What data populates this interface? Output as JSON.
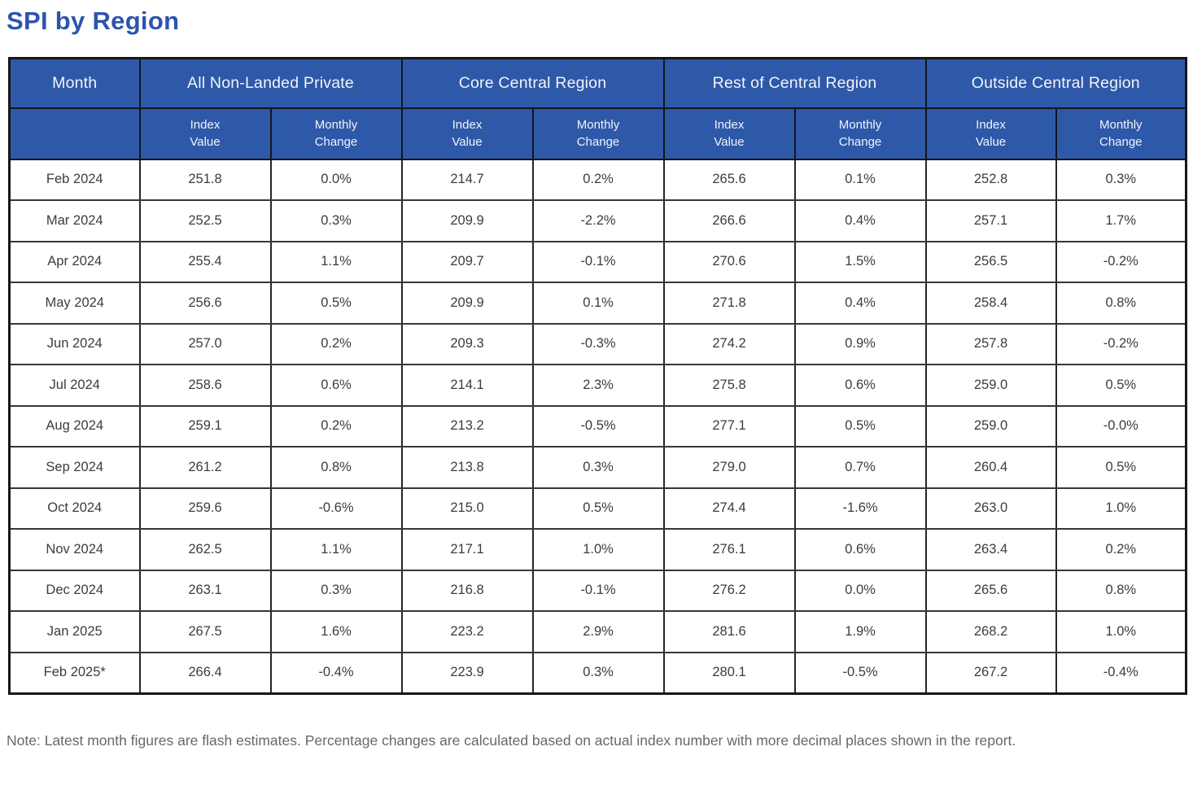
{
  "colors": {
    "title_text": "#2b55ae",
    "header_fill": "#2e59a8",
    "header_text": "#f1f4fa",
    "body_text": "#3c3c3c",
    "note_text": "#686868",
    "grid_line": "#2a2a2a"
  },
  "chart_data": {
    "type": "table",
    "title": "SPI by Region",
    "month_header": "Month",
    "regions": [
      "All Non-Landed Private",
      "Core Central Region",
      "Rest of Central Region",
      "Outside Central Region"
    ],
    "subheaders": [
      "Index\nValue",
      "Monthly\nChange",
      "Index\nValue",
      "Monthly\nChange",
      "Index\nValue",
      "Monthly\nChange",
      "Index\nValue",
      "Monthly\nChange"
    ],
    "rows": [
      {
        "month": "Feb 2024",
        "values": [
          "251.8",
          "0.0%",
          "214.7",
          "0.2%",
          "265.6",
          "0.1%",
          "252.8",
          "0.3%"
        ]
      },
      {
        "month": "Mar 2024",
        "values": [
          "252.5",
          "0.3%",
          "209.9",
          "-2.2%",
          "266.6",
          "0.4%",
          "257.1",
          "1.7%"
        ]
      },
      {
        "month": "Apr 2024",
        "values": [
          "255.4",
          "1.1%",
          "209.7",
          "-0.1%",
          "270.6",
          "1.5%",
          "256.5",
          "-0.2%"
        ]
      },
      {
        "month": "May 2024",
        "values": [
          "256.6",
          "0.5%",
          "209.9",
          "0.1%",
          "271.8",
          "0.4%",
          "258.4",
          "0.8%"
        ]
      },
      {
        "month": "Jun 2024",
        "values": [
          "257.0",
          "0.2%",
          "209.3",
          "-0.3%",
          "274.2",
          "0.9%",
          "257.8",
          "-0.2%"
        ]
      },
      {
        "month": "Jul 2024",
        "values": [
          "258.6",
          "0.6%",
          "214.1",
          "2.3%",
          "275.8",
          "0.6%",
          "259.0",
          "0.5%"
        ]
      },
      {
        "month": "Aug 2024",
        "values": [
          "259.1",
          "0.2%",
          "213.2",
          "-0.5%",
          "277.1",
          "0.5%",
          "259.0",
          "-0.0%"
        ]
      },
      {
        "month": "Sep 2024",
        "values": [
          "261.2",
          "0.8%",
          "213.8",
          "0.3%",
          "279.0",
          "0.7%",
          "260.4",
          "0.5%"
        ]
      },
      {
        "month": "Oct 2024",
        "values": [
          "259.6",
          "-0.6%",
          "215.0",
          "0.5%",
          "274.4",
          "-1.6%",
          "263.0",
          "1.0%"
        ]
      },
      {
        "month": "Nov 2024",
        "values": [
          "262.5",
          "1.1%",
          "217.1",
          "1.0%",
          "276.1",
          "0.6%",
          "263.4",
          "0.2%"
        ]
      },
      {
        "month": "Dec 2024",
        "values": [
          "263.1",
          "0.3%",
          "216.8",
          "-0.1%",
          "276.2",
          "0.0%",
          "265.6",
          "0.8%"
        ]
      },
      {
        "month": "Jan 2025",
        "values": [
          "267.5",
          "1.6%",
          "223.2",
          "2.9%",
          "281.6",
          "1.9%",
          "268.2",
          "1.0%"
        ]
      },
      {
        "month": "Feb 2025*",
        "values": [
          "266.4",
          "-0.4%",
          "223.9",
          "0.3%",
          "280.1",
          "-0.5%",
          "267.2",
          "-0.4%"
        ]
      }
    ],
    "note": "Note: Latest month figures are flash estimates. Percentage changes are calculated based on actual index number with more decimal places shown in the report."
  }
}
